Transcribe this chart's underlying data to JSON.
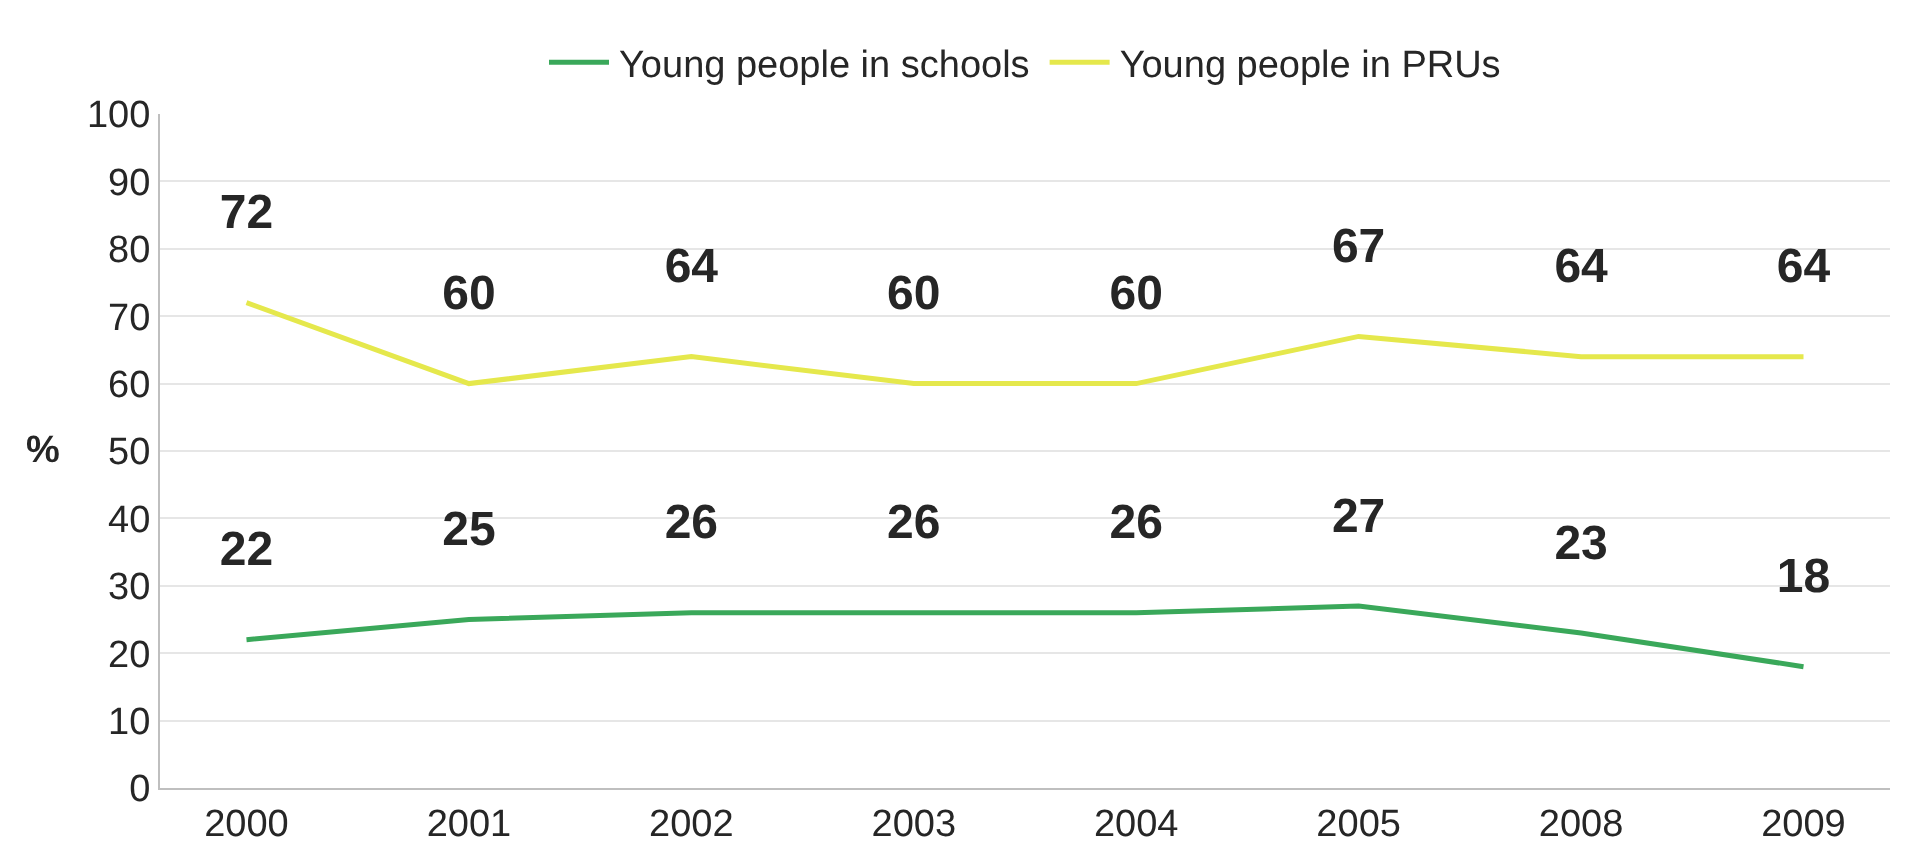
{
  "chart_data": {
    "type": "line",
    "ylabel": "%",
    "categories": [
      "2000",
      "2001",
      "2002",
      "2003",
      "2004",
      "2005",
      "2008",
      "2009"
    ],
    "series": [
      {
        "name": "Young people in schools",
        "color": "#3aa85a",
        "values": [
          22,
          25,
          26,
          26,
          26,
          27,
          23,
          18
        ]
      },
      {
        "name": "Young people in PRUs",
        "color": "#e5e84c",
        "values": [
          72,
          60,
          64,
          60,
          60,
          67,
          64,
          64
        ]
      }
    ],
    "ylim": [
      0,
      100
    ],
    "yticks": [
      0,
      10,
      20,
      30,
      40,
      50,
      60,
      70,
      80,
      90,
      100
    ],
    "grid": "y",
    "legend": "top",
    "data_labels": true,
    "marker": "none",
    "line_style": "solid"
  }
}
